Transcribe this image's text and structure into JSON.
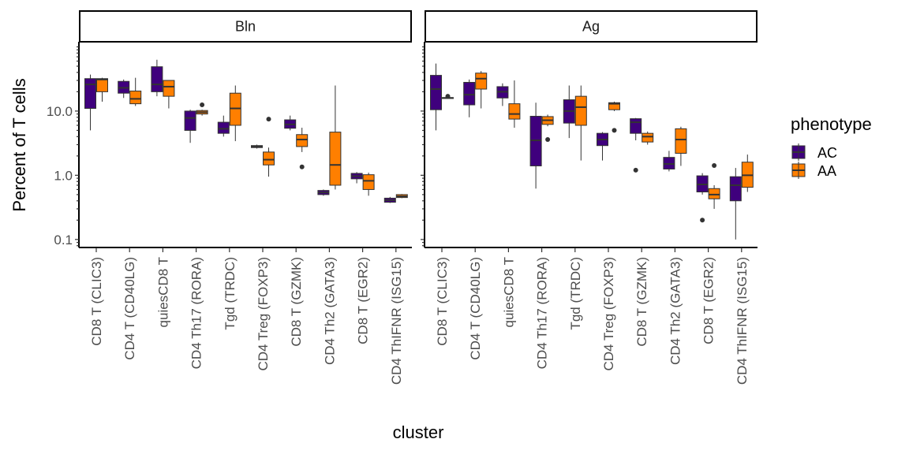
{
  "chart_data": {
    "type": "boxplot",
    "facets": [
      "Bln",
      "Ag"
    ],
    "categories": [
      "CD8 T (CLIC3)",
      "CD4 T (CD40LG)",
      "quiesCD8 T",
      "CD4 Th17 (RORA)",
      "Tgd (TRDC)",
      "CD4 Treg (FOXP3)",
      "CD8 T (GZMK)",
      "CD4 Th2 (GATA3)",
      "CD8 T (EGR2)",
      "CD4 ThIFNR (ISG15)"
    ],
    "xlabel": "cluster",
    "ylabel": "Percent of T cells",
    "yscale": "log10",
    "ylim": [
      0.075,
      120
    ],
    "yticks": [
      0.1,
      1,
      10
    ],
    "ytick_labels": [
      "0.1",
      "1.0",
      "10.0"
    ],
    "legend": {
      "title": "phenotype",
      "position": "right",
      "entries": [
        {
          "name": "AC",
          "color": "#3f007d"
        },
        {
          "name": "AA",
          "color": "#ff7f00"
        }
      ]
    },
    "series": [
      {
        "name": "AC",
        "facet": "Bln",
        "boxes": [
          {
            "min": 5,
            "q1": 11,
            "median": 26,
            "q3": 32,
            "max": 37,
            "outliers": []
          },
          {
            "min": 16,
            "q1": 19,
            "median": 23,
            "q3": 29,
            "max": 31,
            "outliers": []
          },
          {
            "min": 17,
            "q1": 20,
            "median": 26,
            "q3": 49,
            "max": 63,
            "outliers": []
          },
          {
            "min": 3.2,
            "q1": 5,
            "median": 7.8,
            "q3": 10,
            "max": 10.5,
            "outliers": []
          },
          {
            "min": 4,
            "q1": 4.5,
            "median": 5.3,
            "q3": 6.7,
            "max": 8.5,
            "outliers": []
          },
          {
            "min": 2.6,
            "q1": 2.7,
            "median": 2.8,
            "q3": 2.9,
            "max": 3,
            "outliers": []
          },
          {
            "min": 5,
            "q1": 5.4,
            "median": 6.2,
            "q3": 7.3,
            "max": 8.5,
            "outliers": []
          },
          {
            "min": 0.48,
            "q1": 0.5,
            "median": 0.54,
            "q3": 0.58,
            "max": 0.6,
            "outliers": []
          },
          {
            "min": 0.75,
            "q1": 0.88,
            "median": 0.97,
            "q3": 1.07,
            "max": 1.12,
            "outliers": []
          },
          {
            "min": 0.37,
            "q1": 0.38,
            "median": 0.41,
            "q3": 0.44,
            "max": 0.46,
            "outliers": []
          }
        ]
      },
      {
        "name": "AA",
        "facet": "Bln",
        "boxes": [
          {
            "min": 14,
            "q1": 20,
            "median": 31,
            "q3": 32,
            "max": 33,
            "outliers": []
          },
          {
            "min": 12,
            "q1": 13,
            "median": 15.5,
            "q3": 20.5,
            "max": 33,
            "outliers": []
          },
          {
            "min": 11,
            "q1": 17,
            "median": 24,
            "q3": 30,
            "max": 30,
            "outliers": []
          },
          {
            "min": 8.5,
            "q1": 9,
            "median": 9.6,
            "q3": 10.2,
            "max": 10.5,
            "outliers": [
              12.5
            ]
          },
          {
            "min": 3.4,
            "q1": 6,
            "median": 11,
            "q3": 19,
            "max": 25,
            "outliers": []
          },
          {
            "min": 0.95,
            "q1": 1.45,
            "median": 1.75,
            "q3": 2.3,
            "max": 2.7,
            "outliers": [
              7.5
            ]
          },
          {
            "min": 2.3,
            "q1": 2.8,
            "median": 3.6,
            "q3": 4.3,
            "max": 5.5,
            "outliers": [
              1.35
            ]
          },
          {
            "min": 0.6,
            "q1": 0.7,
            "median": 1.45,
            "q3": 4.7,
            "max": 25,
            "outliers": []
          },
          {
            "min": 0.48,
            "q1": 0.6,
            "median": 0.82,
            "q3": 1.02,
            "max": 1.1,
            "outliers": []
          },
          {
            "min": 0.44,
            "q1": 0.45,
            "median": 0.47,
            "q3": 0.5,
            "max": 0.51,
            "outliers": []
          }
        ]
      },
      {
        "name": "AC",
        "facet": "Ag",
        "boxes": [
          {
            "min": 5,
            "q1": 10.5,
            "median": 22,
            "q3": 36,
            "max": 55,
            "outliers": []
          },
          {
            "min": 8,
            "q1": 12.5,
            "median": 18,
            "q3": 28,
            "max": 31,
            "outliers": []
          },
          {
            "min": 12,
            "q1": 16,
            "median": 20,
            "q3": 24,
            "max": 27,
            "outliers": []
          },
          {
            "min": 0.62,
            "q1": 1.4,
            "median": 3.5,
            "q3": 8.3,
            "max": 13.5,
            "outliers": []
          },
          {
            "min": 3.8,
            "q1": 6.5,
            "median": 10,
            "q3": 15,
            "max": 25,
            "outliers": []
          },
          {
            "min": 1.7,
            "q1": 2.9,
            "median": 3.6,
            "q3": 4.5,
            "max": 4.7,
            "outliers": []
          },
          {
            "min": 3.5,
            "q1": 4.5,
            "median": 6.7,
            "q3": 7.6,
            "max": 7.8,
            "outliers": [
              1.2
            ]
          },
          {
            "min": 1.15,
            "q1": 1.25,
            "median": 1.5,
            "q3": 1.9,
            "max": 2.4,
            "outliers": []
          },
          {
            "min": 0.5,
            "q1": 0.55,
            "median": 0.72,
            "q3": 0.98,
            "max": 1.08,
            "outliers": [
              0.2
            ]
          },
          {
            "min": 0.1,
            "q1": 0.4,
            "median": 0.7,
            "q3": 0.95,
            "max": 1.3,
            "outliers": []
          }
        ]
      },
      {
        "name": "AA",
        "facet": "Ag",
        "boxes": [
          {
            "min": 15.5,
            "q1": 15.7,
            "median": 16,
            "q3": 16.2,
            "max": 16.5,
            "outliers": [
              17
            ]
          },
          {
            "min": 11,
            "q1": 22,
            "median": 32,
            "q3": 39,
            "max": 42,
            "outliers": []
          },
          {
            "min": 5.5,
            "q1": 7.5,
            "median": 9,
            "q3": 13,
            "max": 30,
            "outliers": []
          },
          {
            "min": 5.8,
            "q1": 6.2,
            "median": 7.2,
            "q3": 8.2,
            "max": 8.8,
            "outliers": [
              3.6
            ]
          },
          {
            "min": 1.7,
            "q1": 6,
            "median": 11.5,
            "q3": 17,
            "max": 25,
            "outliers": []
          },
          {
            "min": 10,
            "q1": 10.5,
            "median": 13,
            "q3": 13.5,
            "max": 14,
            "outliers": [
              5
            ]
          },
          {
            "min": 3,
            "q1": 3.3,
            "median": 4,
            "q3": 4.5,
            "max": 4.8,
            "outliers": []
          },
          {
            "min": 1.4,
            "q1": 2.2,
            "median": 3.6,
            "q3": 5.3,
            "max": 5.7,
            "outliers": []
          },
          {
            "min": 0.3,
            "q1": 0.43,
            "median": 0.5,
            "q3": 0.62,
            "max": 0.7,
            "outliers": [
              1.42
            ]
          },
          {
            "min": 0.55,
            "q1": 0.65,
            "median": 1,
            "q3": 1.6,
            "max": 2.1,
            "outliers": []
          }
        ]
      }
    ]
  }
}
